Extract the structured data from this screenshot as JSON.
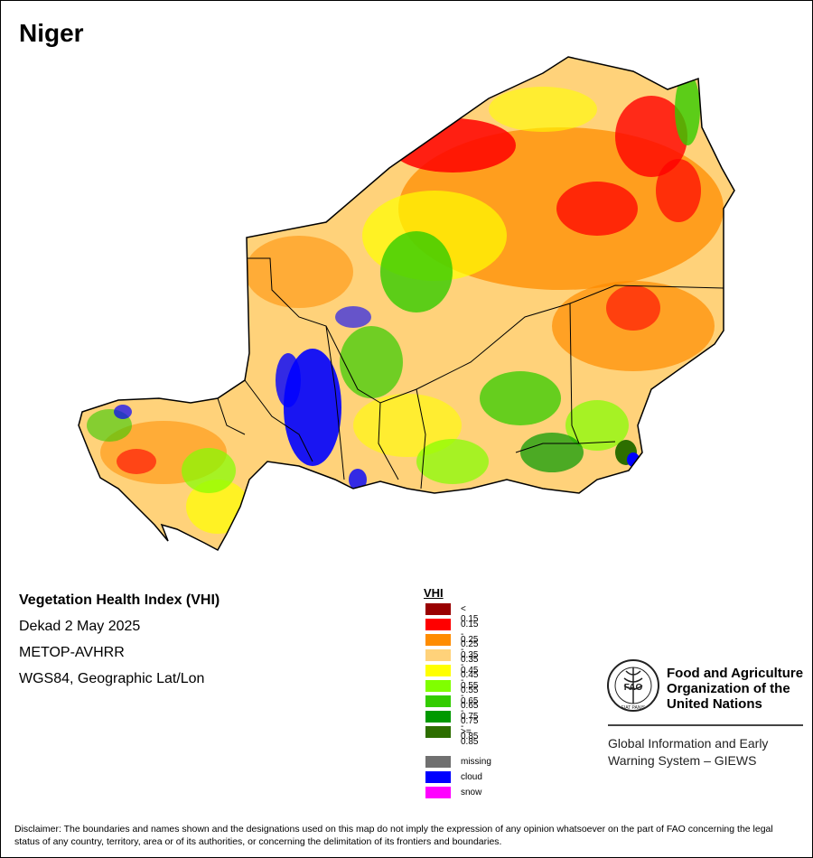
{
  "map": {
    "title": "Niger",
    "info": {
      "index_name": "Vegetation Health Index (VHI)",
      "period": "Dekad 2 May 2025",
      "sensor": "METOP-AVHRR",
      "projection": "WGS84, Geographic Lat/Lon"
    }
  },
  "legend": {
    "title": "VHI",
    "classes": [
      {
        "label": "< 0.15",
        "color": "#990000"
      },
      {
        "label": "0.15 - 0.25",
        "color": "#ff0000"
      },
      {
        "label": "0.25 - 0.35",
        "color": "#ff8c00"
      },
      {
        "label": "0.35 - 0.45",
        "color": "#ffd27a"
      },
      {
        "label": "0.45 - 0.55",
        "color": "#ffff00"
      },
      {
        "label": "0.55 - 0.65",
        "color": "#80ff00"
      },
      {
        "label": "0.65 - 0.75",
        "color": "#33cc00"
      },
      {
        "label": "0.75 - 0.85",
        "color": "#009900"
      },
      {
        "label": ">= 0.85",
        "color": "#2d6e00"
      }
    ],
    "special": [
      {
        "label": "missing",
        "color": "#707070"
      },
      {
        "label": "cloud",
        "color": "#0000ff"
      },
      {
        "label": "snow",
        "color": "#ff00ff"
      }
    ]
  },
  "organization": {
    "name_line1": "Food and Agriculture",
    "name_line2": "Organization of the",
    "name_line3": "United Nations",
    "logo_text": "FAO",
    "logo_motto": "FIAT PANIS",
    "system_line1": "Global Information and Early",
    "system_line2": "Warning System – GIEWS"
  },
  "disclaimer": "Disclaimer: The boundaries and names shown and the designations used on this map do not imply the expression of any opinion whatsoever on the part of FAO concerning the legal status of any country, territory, area or of its authorities, or concerning the delimitation of its frontiers and boundaries."
}
